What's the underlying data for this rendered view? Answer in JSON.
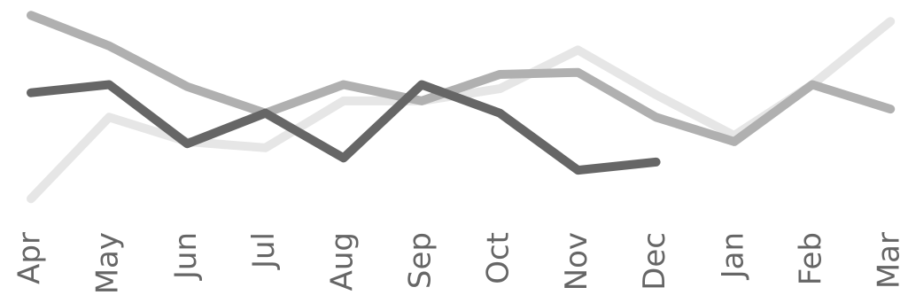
{
  "chart_data": {
    "type": "line",
    "categories": [
      "Apr",
      "May",
      "Jun",
      "Jul",
      "Aug",
      "Sep",
      "Oct",
      "Nov",
      "Dec",
      "Jan",
      "Feb",
      "Mar"
    ],
    "ylim": [
      0,
      100
    ],
    "series": [
      {
        "color": "#e6e6e6",
        "values": [
          9,
          49,
          37,
          34,
          57,
          57,
          63,
          82,
          60,
          40,
          65,
          96
        ]
      },
      {
        "color": "#b0b0b0",
        "values": [
          99,
          84,
          64,
          51,
          65,
          57,
          70,
          71,
          49,
          37,
          65,
          53
        ]
      },
      {
        "color": "#666666",
        "values": [
          61,
          65,
          36,
          51,
          29,
          65,
          51,
          23,
          27,
          null,
          null,
          null
        ]
      }
    ]
  }
}
